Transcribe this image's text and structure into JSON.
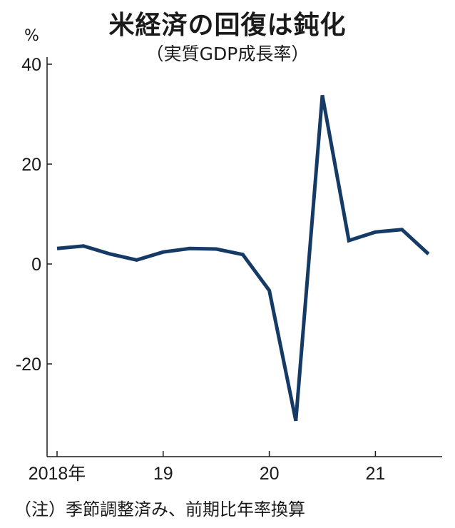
{
  "chart_data": {
    "type": "line",
    "title": "米経済の回復は鈍化",
    "subtitle": "（実質GDP成長率）",
    "unit_label": "%",
    "note": "（注）季節調整済み、前期比年率換算",
    "x_tick_labels": [
      "2018年",
      "19",
      "20",
      "21"
    ],
    "y_ticks": [
      40,
      20,
      0,
      -20
    ],
    "y_tick_labels": [
      "40",
      "20",
      "0",
      "-20"
    ],
    "ylim": [
      -38,
      40
    ],
    "x": [
      "2018Q1",
      "2018Q2",
      "2018Q3",
      "2018Q4",
      "2019Q1",
      "2019Q2",
      "2019Q3",
      "2019Q4",
      "2020Q1",
      "2020Q2",
      "2020Q3",
      "2020Q4",
      "2021Q1",
      "2021Q2",
      "2021Q3"
    ],
    "series": [
      {
        "values": [
          3.1,
          3.6,
          2.0,
          0.8,
          2.4,
          3.1,
          3.0,
          1.9,
          -5.3,
          -31.4,
          33.8,
          4.7,
          6.4,
          6.9,
          2.0
        ]
      }
    ],
    "line_color": "#163a66",
    "grid": false
  }
}
